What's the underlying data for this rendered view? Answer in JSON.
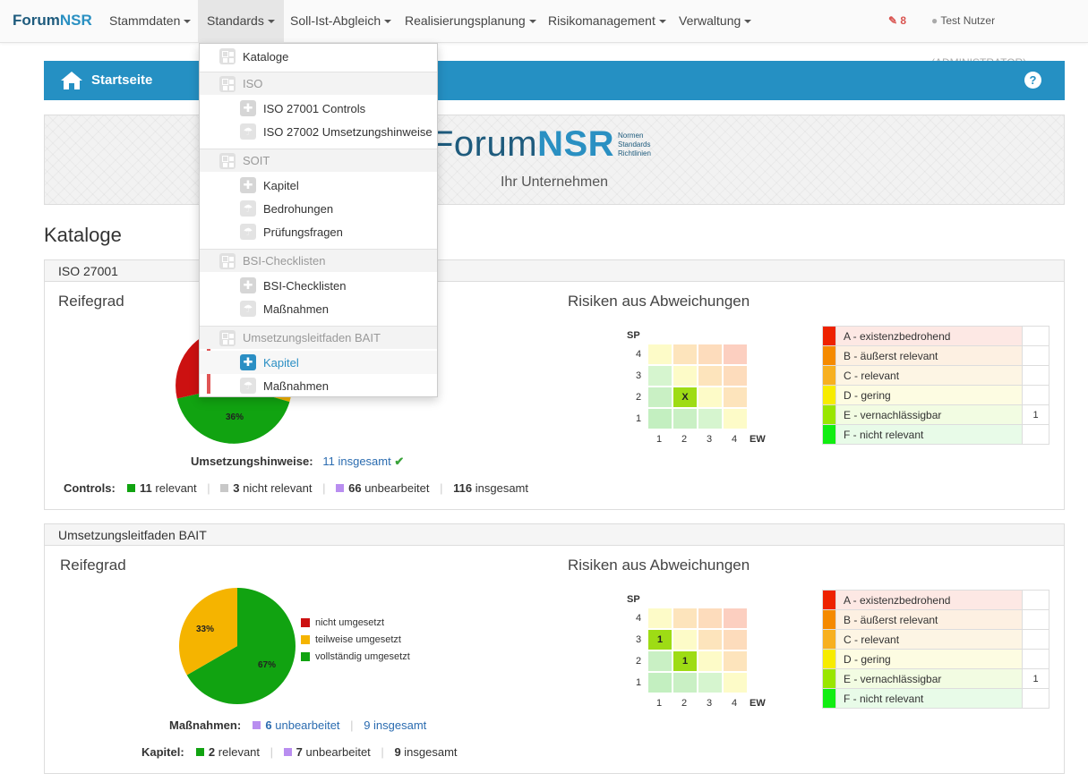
{
  "nav": {
    "brand_a": "Forum",
    "brand_b": "NSR",
    "items": [
      {
        "label": "Stammdaten"
      },
      {
        "label": "Standards"
      },
      {
        "label": "Soll-Ist-Abgleich"
      },
      {
        "label": "Realisierungsplanung"
      },
      {
        "label": "Risikomanagement"
      },
      {
        "label": "Verwaltung"
      }
    ],
    "notifications": "8",
    "user": "Test Nutzer",
    "role": "(ADMINISTRATOR)"
  },
  "topbar": {
    "title": "Startseite",
    "help": "?"
  },
  "banner": {
    "logo_a": "Forum",
    "logo_b": "NSR",
    "tag1": "Normen",
    "tag2": "Standards",
    "tag3": "Richtlinien",
    "company": "Ihr Unternehmen"
  },
  "section_title": "Kataloge",
  "dropdown": {
    "items": [
      {
        "label": "Kataloge",
        "type": "top"
      },
      {
        "label": "ISO",
        "type": "group"
      },
      {
        "label": "ISO 27001 Controls",
        "type": "item"
      },
      {
        "label": "ISO 27002 Umsetzungshinweise",
        "type": "item"
      },
      {
        "label": "SOIT",
        "type": "group"
      },
      {
        "label": "Kapitel",
        "type": "item"
      },
      {
        "label": "Bedrohungen",
        "type": "item"
      },
      {
        "label": "Prüfungsfragen",
        "type": "item"
      },
      {
        "label": "BSI-Checklisten",
        "type": "group"
      },
      {
        "label": "BSI-Checklisten",
        "type": "item"
      },
      {
        "label": "Maßnahmen",
        "type": "item"
      },
      {
        "label": "Umsetzungsleitfaden BAIT",
        "type": "group"
      },
      {
        "label": "Kapitel",
        "type": "item"
      },
      {
        "label": "Maßnahmen",
        "type": "item"
      }
    ]
  },
  "panel1": {
    "title": "ISO 27001",
    "reifegrad": "Reifegrad",
    "risiken": "Risiken aus Abweichungen",
    "pie_label": "36%",
    "umsetz_label": "Umsetzungshinweise:",
    "umsetz_value": "11 insgesamt",
    "controls_label": "Controls:",
    "c_relevant_n": "11",
    "c_relevant_t": "relevant",
    "c_nicht_n": "3",
    "c_nicht_t": "nicht relevant",
    "c_unbear_n": "66",
    "c_unbear_t": "unbearbeitet",
    "c_total_n": "116",
    "c_total_t": "insgesamt",
    "grid_marks": {
      "r2c2": "X"
    },
    "legend_counts": [
      "",
      "",
      "",
      "",
      "1",
      ""
    ]
  },
  "panel2": {
    "title": "Umsetzungsleitfaden BAIT",
    "reifegrad": "Reifegrad",
    "risiken": "Risiken aus Abweichungen",
    "pie": [
      {
        "label": "nicht umgesetzt",
        "value": 0,
        "color": "#cc1111"
      },
      {
        "label": "teilweise umgesetzt",
        "value": 33,
        "color": "#f5b400"
      },
      {
        "label": "vollständig umgesetzt",
        "value": 67,
        "color": "#11a311"
      }
    ],
    "pie_label_a": "33%",
    "pie_label_b": "67%",
    "mass_label": "Maßnahmen:",
    "m_unbear_n": "6",
    "m_unbear_t": "unbearbeitet",
    "m_total": "9 insgesamt",
    "kapitel_label": "Kapitel:",
    "k_relevant_n": "2",
    "k_relevant_t": "relevant",
    "k_unbear_n": "7",
    "k_unbear_t": "unbearbeitet",
    "k_total_n": "9",
    "k_total_t": "insgesamt",
    "grid_marks": {
      "r3c1": "1",
      "r2c2": "1"
    },
    "legend_counts": [
      "",
      "",
      "",
      "",
      "1",
      ""
    ]
  },
  "risk_grid": {
    "y_title": "SP",
    "x_title": "EW",
    "ticks": [
      "1",
      "2",
      "3",
      "4"
    ],
    "colors": {
      "r4": [
        "#fdfbc8",
        "#fde4bc",
        "#fddcbc",
        "#fccfc0"
      ],
      "r3": [
        "#d6f5cf",
        "#fdfbc8",
        "#fde4bc",
        "#fddcbc"
      ],
      "r2": [
        "#c9f0c4",
        "#d6f5cf",
        "#fdfbc8",
        "#fde4bc"
      ],
      "r1": [
        "#c3efc0",
        "#c9f0c4",
        "#d6f5cf",
        "#fdfbc8"
      ]
    },
    "mark_color": "#9edc15"
  },
  "risk_legend": [
    {
      "label": "A - existenzbedrohend",
      "color": "#ee2200",
      "bg": "#fde8e4"
    },
    {
      "label": "B - äußerst relevant",
      "color": "#f58a00",
      "bg": "#fdf0e2"
    },
    {
      "label": "C - relevant",
      "color": "#f7b020",
      "bg": "#fdf5e4"
    },
    {
      "label": "D - gering",
      "color": "#f7ec00",
      "bg": "#fdfce2"
    },
    {
      "label": "E - vernachlässigbar",
      "color": "#99e600",
      "bg": "#f2fce2"
    },
    {
      "label": "F - nicht relevant",
      "color": "#11ee11",
      "bg": "#e8fbe8"
    }
  ]
}
